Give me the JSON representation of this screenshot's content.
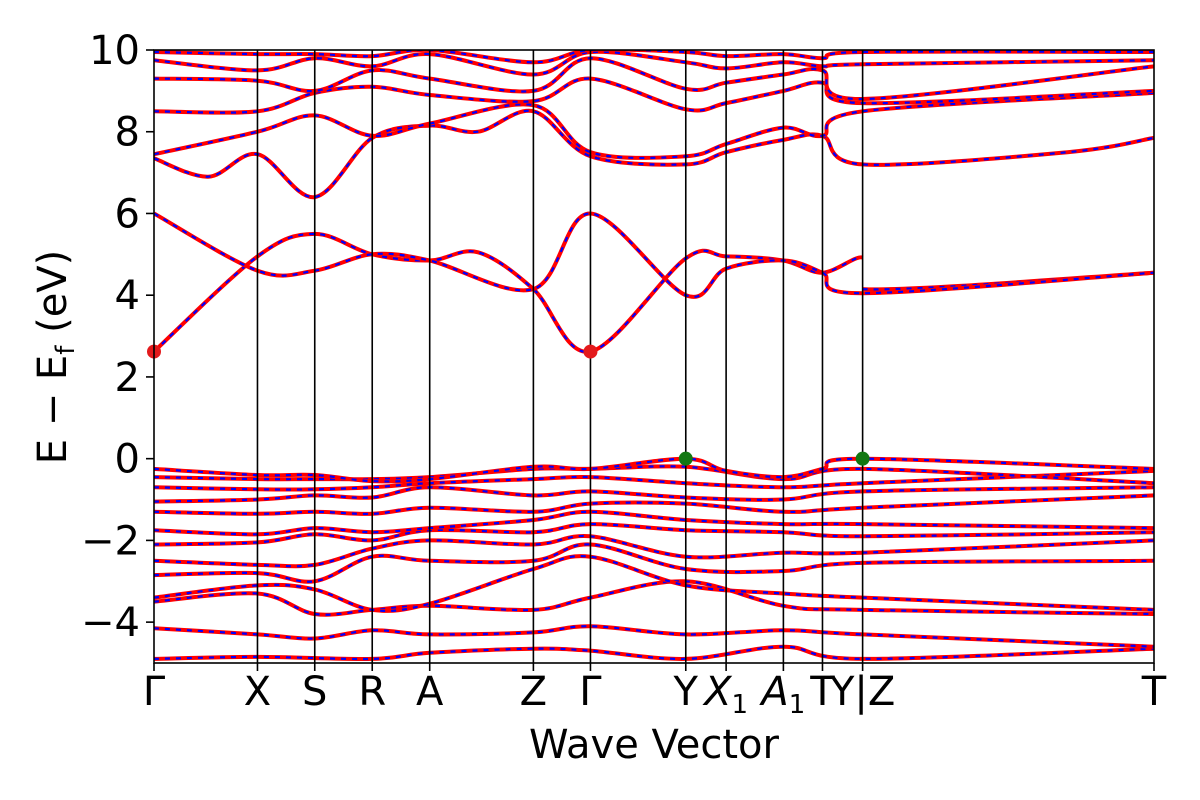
{
  "chart_data": {
    "type": "line",
    "title": "",
    "xlabel": "Wave Vector",
    "ylabel": "E − E_f (eV)",
    "ylabel_parts": {
      "main": "E − E",
      "sub": "f",
      "tail": " (eV)"
    },
    "ylim": [
      -5,
      10
    ],
    "yticks": [
      -4,
      -2,
      0,
      2,
      4,
      6,
      8,
      10
    ],
    "ytick_labels": [
      "−4",
      "−2",
      "0",
      "2",
      "4",
      "6",
      "8",
      "10"
    ],
    "kpath": [
      {
        "label": "Γ",
        "k": 0.0
      },
      {
        "label": "X",
        "k": 0.495
      },
      {
        "label": "S",
        "k": 0.769
      },
      {
        "label": "R",
        "k": 1.044
      },
      {
        "label": "A",
        "k": 1.319
      },
      {
        "label": "Z",
        "k": 1.815
      },
      {
        "label": "Γ",
        "k": 2.088
      },
      {
        "label": "Y",
        "k": 2.544
      },
      {
        "label": "X",
        "sub": "1",
        "k": 2.737
      },
      {
        "label": "A",
        "sub": "1",
        "k": 3.011
      },
      {
        "label": "T",
        "k": 3.198
      },
      {
        "label": "Y|Z",
        "k": 3.39
      },
      {
        "label": "T",
        "k": 4.784
      }
    ],
    "bands": [
      {
        "name": "",
        "points": [
          [
            0,
            -4.9
          ],
          [
            0.495,
            -4.85
          ],
          [
            1.044,
            -4.9
          ],
          [
            1.319,
            -4.75
          ],
          [
            1.815,
            -4.65
          ],
          [
            2.088,
            -4.7
          ],
          [
            2.544,
            -4.9
          ],
          [
            3.011,
            -4.6
          ],
          [
            3.39,
            -4.9
          ],
          [
            4.784,
            -4.65
          ]
        ]
      },
      {
        "name": "",
        "points": [
          [
            0,
            -4.15
          ],
          [
            0.495,
            -4.3
          ],
          [
            0.769,
            -4.4
          ],
          [
            1.044,
            -4.2
          ],
          [
            1.319,
            -4.3
          ],
          [
            1.815,
            -4.25
          ],
          [
            2.088,
            -4.1
          ],
          [
            2.544,
            -4.3
          ],
          [
            3.011,
            -4.2
          ],
          [
            3.39,
            -4.3
          ],
          [
            4.784,
            -4.6
          ]
        ]
      },
      {
        "name": "",
        "points": [
          [
            0,
            -3.5
          ],
          [
            0.495,
            -3.3
          ],
          [
            0.769,
            -3.8
          ],
          [
            1.044,
            -3.7
          ],
          [
            1.319,
            -3.6
          ],
          [
            1.815,
            -3.7
          ],
          [
            2.088,
            -3.4
          ],
          [
            2.544,
            -3.0
          ],
          [
            3.011,
            -3.6
          ],
          [
            3.39,
            -3.7
          ],
          [
            4.784,
            -3.8
          ]
        ]
      },
      {
        "name": "",
        "points": [
          [
            0,
            -3.4
          ],
          [
            0.495,
            -3.1
          ],
          [
            0.769,
            -3.2
          ],
          [
            1.044,
            -3.7
          ],
          [
            1.319,
            -3.55
          ],
          [
            1.815,
            -2.7
          ],
          [
            2.088,
            -2.4
          ],
          [
            2.544,
            -3.1
          ],
          [
            3.011,
            -3.3
          ],
          [
            3.39,
            -3.4
          ],
          [
            4.784,
            -3.7
          ]
        ]
      },
      {
        "name": "",
        "points": [
          [
            0,
            -2.85
          ],
          [
            0.495,
            -2.8
          ],
          [
            0.769,
            -3.0
          ],
          [
            1.044,
            -2.4
          ],
          [
            1.319,
            -2.5
          ],
          [
            1.815,
            -2.5
          ],
          [
            2.088,
            -2.1
          ],
          [
            2.544,
            -2.7
          ],
          [
            3.011,
            -2.75
          ],
          [
            3.39,
            -2.55
          ],
          [
            4.784,
            -2.5
          ]
        ]
      },
      {
        "name": "",
        "points": [
          [
            0,
            -2.5
          ],
          [
            0.495,
            -2.6
          ],
          [
            0.769,
            -2.6
          ],
          [
            1.044,
            -2.2
          ],
          [
            1.319,
            -2.0
          ],
          [
            1.815,
            -2.1
          ],
          [
            2.088,
            -1.9
          ],
          [
            2.544,
            -2.4
          ],
          [
            3.011,
            -2.3
          ],
          [
            3.39,
            -2.3
          ],
          [
            4.784,
            -2.0
          ]
        ]
      },
      {
        "name": "",
        "points": [
          [
            0,
            -2.1
          ],
          [
            0.495,
            -2.05
          ],
          [
            0.769,
            -1.85
          ],
          [
            1.044,
            -2.0
          ],
          [
            1.319,
            -1.75
          ],
          [
            1.815,
            -1.8
          ],
          [
            2.088,
            -1.6
          ],
          [
            2.544,
            -1.75
          ],
          [
            3.011,
            -1.8
          ],
          [
            3.39,
            -1.9
          ],
          [
            4.784,
            -1.8
          ]
        ]
      },
      {
        "name": "",
        "points": [
          [
            0,
            -1.75
          ],
          [
            0.495,
            -1.85
          ],
          [
            0.769,
            -1.7
          ],
          [
            1.044,
            -1.8
          ],
          [
            1.319,
            -1.7
          ],
          [
            1.815,
            -1.5
          ],
          [
            2.088,
            -1.3
          ],
          [
            2.544,
            -1.5
          ],
          [
            3.011,
            -1.6
          ],
          [
            3.39,
            -1.6
          ],
          [
            4.784,
            -1.7
          ]
        ]
      },
      {
        "name": "",
        "points": [
          [
            0,
            -1.3
          ],
          [
            0.495,
            -1.35
          ],
          [
            0.769,
            -1.3
          ],
          [
            1.044,
            -1.35
          ],
          [
            1.319,
            -1.2
          ],
          [
            1.815,
            -1.3
          ],
          [
            2.088,
            -1.1
          ],
          [
            2.544,
            -1.1
          ],
          [
            3.011,
            -1.3
          ],
          [
            3.39,
            -1.2
          ],
          [
            4.784,
            -0.9
          ]
        ]
      },
      {
        "name": "",
        "points": [
          [
            0,
            -1.05
          ],
          [
            0.495,
            -1.0
          ],
          [
            0.769,
            -0.9
          ],
          [
            1.044,
            -0.95
          ],
          [
            1.319,
            -0.7
          ],
          [
            1.815,
            -0.9
          ],
          [
            2.088,
            -0.8
          ],
          [
            2.544,
            -0.95
          ],
          [
            3.011,
            -1.0
          ],
          [
            3.39,
            -0.8
          ],
          [
            4.784,
            -0.7
          ]
        ]
      },
      {
        "name": "",
        "points": [
          [
            0,
            -0.7
          ],
          [
            0.495,
            -0.75
          ],
          [
            0.769,
            -0.75
          ],
          [
            1.044,
            -0.7
          ],
          [
            1.319,
            -0.6
          ],
          [
            1.815,
            -0.5
          ],
          [
            2.088,
            -0.45
          ],
          [
            2.544,
            -0.6
          ],
          [
            3.011,
            -0.7
          ],
          [
            3.39,
            -0.6
          ],
          [
            4.784,
            -0.3
          ]
        ]
      },
      {
        "name": "",
        "points": [
          [
            0,
            -0.45
          ],
          [
            0.495,
            -0.5
          ],
          [
            0.769,
            -0.5
          ],
          [
            1.044,
            -0.5
          ],
          [
            1.319,
            -0.45
          ],
          [
            1.815,
            -0.25
          ],
          [
            2.088,
            -0.25
          ],
          [
            2.544,
            -0.2
          ],
          [
            3.011,
            -0.5
          ],
          [
            3.39,
            -0.25
          ],
          [
            4.784,
            -0.6
          ]
        ]
      },
      {
        "name": "",
        "points": [
          [
            0,
            -0.25
          ],
          [
            0.495,
            -0.4
          ],
          [
            0.769,
            -0.4
          ],
          [
            1.044,
            -0.55
          ],
          [
            1.319,
            -0.5
          ],
          [
            1.815,
            -0.2
          ],
          [
            2.088,
            -0.25
          ],
          [
            2.544,
            0.0
          ],
          [
            2.737,
            -0.3
          ],
          [
            3.011,
            -0.45
          ],
          [
            3.198,
            -0.25
          ],
          [
            3.39,
            0.0
          ],
          [
            4.784,
            -0.25
          ]
        ]
      },
      {
        "name": "",
        "points": [
          [
            0,
            2.62
          ],
          [
            0.495,
            4.95
          ],
          [
            0.769,
            5.5
          ],
          [
            1.044,
            5.0
          ],
          [
            1.319,
            4.85
          ],
          [
            1.55,
            5.05
          ],
          [
            1.815,
            4.15
          ],
          [
            2.088,
            2.62
          ],
          [
            2.544,
            4.9
          ],
          [
            2.737,
            4.95
          ],
          [
            3.011,
            4.85
          ],
          [
            3.198,
            4.55
          ],
          [
            3.39,
            4.92
          ],
          [
            3.39,
            4.15
          ],
          [
            4.784,
            4.55
          ]
        ]
      },
      {
        "name": "",
        "points": [
          [
            0,
            6.0
          ],
          [
            0.495,
            4.6
          ],
          [
            0.769,
            4.6
          ],
          [
            1.044,
            5.0
          ],
          [
            1.319,
            4.85
          ],
          [
            1.815,
            4.15
          ],
          [
            2.088,
            6.0
          ],
          [
            2.544,
            4.0
          ],
          [
            2.737,
            4.65
          ],
          [
            3.011,
            4.85
          ],
          [
            3.198,
            4.55
          ],
          [
            3.39,
            4.05
          ],
          [
            4.784,
            4.55
          ]
        ]
      },
      {
        "name": "",
        "points": [
          [
            0,
            7.35
          ],
          [
            0.26,
            6.9
          ],
          [
            0.495,
            7.45
          ],
          [
            0.769,
            6.4
          ],
          [
            1.044,
            7.85
          ],
          [
            1.319,
            8.15
          ],
          [
            1.55,
            8.0
          ],
          [
            1.815,
            8.5
          ],
          [
            2.088,
            7.4
          ],
          [
            2.544,
            7.2
          ],
          [
            2.737,
            7.5
          ],
          [
            3.011,
            7.8
          ],
          [
            3.198,
            7.9
          ],
          [
            3.39,
            7.2
          ],
          [
            4.37,
            7.5
          ],
          [
            4.784,
            7.85
          ]
        ]
      },
      {
        "name": "",
        "points": [
          [
            0,
            7.45
          ],
          [
            0.495,
            8.0
          ],
          [
            0.769,
            8.4
          ],
          [
            1.044,
            7.9
          ],
          [
            1.319,
            8.2
          ],
          [
            1.815,
            8.65
          ],
          [
            2.088,
            7.5
          ],
          [
            2.544,
            7.4
          ],
          [
            2.737,
            7.7
          ],
          [
            3.011,
            8.1
          ],
          [
            3.198,
            7.9
          ],
          [
            3.39,
            8.5
          ],
          [
            4.784,
            8.95
          ]
        ]
      },
      {
        "name": "",
        "points": [
          [
            0,
            8.5
          ],
          [
            0.495,
            8.5
          ],
          [
            0.769,
            8.95
          ],
          [
            1.044,
            9.1
          ],
          [
            1.319,
            8.9
          ],
          [
            1.815,
            8.75
          ],
          [
            2.088,
            9.3
          ],
          [
            2.544,
            8.55
          ],
          [
            2.737,
            8.7
          ],
          [
            3.011,
            9.0
          ],
          [
            3.198,
            9.2
          ],
          [
            3.39,
            8.7
          ],
          [
            4.784,
            9.0
          ]
        ]
      },
      {
        "name": "",
        "points": [
          [
            0,
            9.3
          ],
          [
            0.495,
            9.25
          ],
          [
            0.769,
            9.0
          ],
          [
            1.044,
            9.5
          ],
          [
            1.319,
            9.3
          ],
          [
            1.815,
            9.0
          ],
          [
            2.088,
            9.8
          ],
          [
            2.544,
            9.05
          ],
          [
            2.737,
            9.2
          ],
          [
            3.011,
            9.4
          ],
          [
            3.198,
            9.5
          ],
          [
            3.39,
            8.8
          ],
          [
            4.784,
            9.6
          ]
        ]
      },
      {
        "name": "",
        "points": [
          [
            0,
            9.75
          ],
          [
            0.495,
            9.5
          ],
          [
            0.769,
            9.8
          ],
          [
            1.044,
            9.6
          ],
          [
            1.319,
            9.9
          ],
          [
            1.815,
            9.4
          ],
          [
            2.088,
            9.95
          ],
          [
            2.544,
            9.7
          ],
          [
            2.737,
            9.55
          ],
          [
            3.011,
            9.7
          ],
          [
            3.198,
            9.6
          ],
          [
            3.39,
            9.65
          ],
          [
            4.784,
            9.75
          ]
        ]
      },
      {
        "name": "",
        "points": [
          [
            0,
            9.95
          ],
          [
            0.495,
            9.9
          ],
          [
            0.769,
            9.9
          ],
          [
            1.044,
            9.85
          ],
          [
            1.319,
            10.0
          ],
          [
            1.815,
            9.7
          ],
          [
            2.088,
            10.0
          ],
          [
            2.544,
            9.95
          ],
          [
            2.737,
            9.85
          ],
          [
            3.011,
            9.9
          ],
          [
            3.198,
            9.8
          ],
          [
            3.39,
            9.95
          ],
          [
            4.784,
            9.95
          ]
        ]
      }
    ],
    "markers": [
      {
        "k": 0.0,
        "e": 2.62,
        "color": "#e31a1c"
      },
      {
        "k": 2.088,
        "e": 2.62,
        "color": "#e31a1c"
      },
      {
        "k": 2.544,
        "e": 0.0,
        "color": "#127712"
      },
      {
        "k": 3.39,
        "e": 0.0,
        "color": "#127712"
      }
    ],
    "colors": {
      "band_red": "#ff0000",
      "band_blue": "#0000ff",
      "axis": "#000000"
    },
    "grid": false,
    "legend": "none"
  }
}
